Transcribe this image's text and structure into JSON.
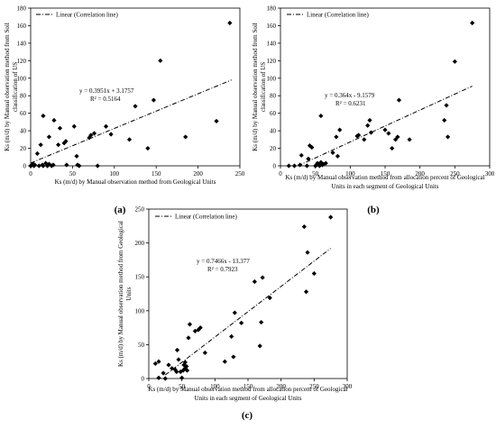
{
  "chart_data": [
    {
      "id": "a",
      "type": "scatter",
      "panel_label": "(a)",
      "xlabel": "Ks (m/d) by Manual observation method from Geological Units",
      "ylabel": [
        "Ks (m/d) by Manual observation method from Soil",
        "classification of US"
      ],
      "legend": "Linear (Correlation line)",
      "legend_position": "top-left",
      "equation": "y = 0.3951x + 3.1757",
      "r2": "R² = 0.5164",
      "xlim": [
        0,
        250
      ],
      "ylim": [
        0,
        180
      ],
      "xticks": [
        0,
        50,
        100,
        150,
        200,
        250
      ],
      "yticks": [
        0,
        20,
        40,
        60,
        80,
        100,
        120,
        140,
        160,
        180
      ],
      "trendline": {
        "slope": 0.3951,
        "intercept": 3.1757,
        "x_range": [
          0,
          240
        ]
      },
      "grid": false,
      "points": [
        [
          0,
          0
        ],
        [
          2,
          1
        ],
        [
          3,
          2
        ],
        [
          4,
          0
        ],
        [
          5,
          1
        ],
        [
          8,
          14
        ],
        [
          10,
          0
        ],
        [
          12,
          24
        ],
        [
          14,
          1
        ],
        [
          15,
          0
        ],
        [
          15,
          57
        ],
        [
          18,
          3
        ],
        [
          20,
          0
        ],
        [
          22,
          2
        ],
        [
          22,
          33
        ],
        [
          25,
          0
        ],
        [
          27,
          1
        ],
        [
          28,
          52
        ],
        [
          33,
          24
        ],
        [
          35,
          43
        ],
        [
          40,
          26
        ],
        [
          42,
          28
        ],
        [
          43,
          1
        ],
        [
          52,
          45
        ],
        [
          55,
          11
        ],
        [
          56,
          1
        ],
        [
          58,
          0
        ],
        [
          70,
          32
        ],
        [
          72,
          35
        ],
        [
          76,
          37
        ],
        [
          80,
          0
        ],
        [
          90,
          45
        ],
        [
          96,
          36
        ],
        [
          118,
          30
        ],
        [
          125,
          68
        ],
        [
          140,
          20
        ],
        [
          147,
          75
        ],
        [
          155,
          120
        ],
        [
          185,
          33
        ],
        [
          222,
          51
        ],
        [
          238,
          163
        ]
      ]
    },
    {
      "id": "b",
      "type": "scatter",
      "panel_label": "(b)",
      "xlabel": [
        "Ks (m/d) by Manual observation method from allocation percent of Geological",
        "Units in each segment of Geological Units"
      ],
      "ylabel": [
        "Ks (m/d) by Manual observation method from Soil",
        "classification of US"
      ],
      "legend": "Linear (Correlation line)",
      "legend_position": "top-left",
      "equation": "y = 0.364x - 9.1579",
      "r2": "R² = 0.6231",
      "xlim": [
        0,
        300
      ],
      "ylim": [
        0,
        180
      ],
      "xticks": [
        0,
        50,
        100,
        150,
        200,
        250,
        300
      ],
      "yticks": [
        0,
        20,
        40,
        60,
        80,
        100,
        120,
        140,
        160,
        180
      ],
      "trendline": {
        "slope": 0.364,
        "intercept": -9.1579,
        "x_range": [
          25,
          275
        ]
      },
      "grid": false,
      "points": [
        [
          12,
          0
        ],
        [
          20,
          0
        ],
        [
          28,
          1
        ],
        [
          30,
          12
        ],
        [
          38,
          0
        ],
        [
          40,
          8
        ],
        [
          42,
          23
        ],
        [
          45,
          21
        ],
        [
          50,
          0
        ],
        [
          52,
          1
        ],
        [
          53,
          3
        ],
        [
          55,
          2
        ],
        [
          56,
          0
        ],
        [
          57,
          1
        ],
        [
          58,
          4
        ],
        [
          58,
          57
        ],
        [
          60,
          1
        ],
        [
          62,
          2
        ],
        [
          65,
          3
        ],
        [
          75,
          15
        ],
        [
          80,
          33
        ],
        [
          82,
          11
        ],
        [
          85,
          41
        ],
        [
          110,
          34
        ],
        [
          112,
          35
        ],
        [
          120,
          30
        ],
        [
          125,
          46
        ],
        [
          128,
          52
        ],
        [
          130,
          38
        ],
        [
          150,
          41
        ],
        [
          155,
          37
        ],
        [
          160,
          20
        ],
        [
          165,
          30
        ],
        [
          168,
          33
        ],
        [
          170,
          75
        ],
        [
          185,
          30
        ],
        [
          235,
          52
        ],
        [
          238,
          69
        ],
        [
          240,
          33
        ],
        [
          250,
          119
        ],
        [
          275,
          163
        ]
      ]
    },
    {
      "id": "c",
      "type": "scatter",
      "panel_label": "(c)",
      "xlabel": [
        "Ks (m/d) by Manual observation method from allocation percent of Geological",
        "Units in each segment of Geological Units"
      ],
      "ylabel": [
        "Ks (m/d) by Manual observation method from Geological",
        "Units"
      ],
      "legend": "Linear (Correlation line)",
      "legend_position": "top-left",
      "equation": "y = 0.7466x - 13.377",
      "r2": "R² = 0.7923",
      "xlim": [
        0,
        300
      ],
      "ylim": [
        0,
        250
      ],
      "xticks": [
        0,
        50,
        100,
        150,
        200,
        250,
        300
      ],
      "yticks": [
        0,
        50,
        100,
        150,
        200,
        250
      ],
      "trendline": {
        "slope": 0.7466,
        "intercept": -13.377,
        "x_range": [
          25,
          275
        ]
      },
      "grid": false,
      "points": [
        [
          10,
          22
        ],
        [
          15,
          25
        ],
        [
          15,
          1
        ],
        [
          22,
          8
        ],
        [
          25,
          0
        ],
        [
          30,
          20
        ],
        [
          35,
          15
        ],
        [
          40,
          13
        ],
        [
          42,
          10
        ],
        [
          43,
          42
        ],
        [
          45,
          28
        ],
        [
          48,
          10
        ],
        [
          50,
          1
        ],
        [
          52,
          12
        ],
        [
          53,
          20
        ],
        [
          55,
          15
        ],
        [
          55,
          24
        ],
        [
          57,
          18
        ],
        [
          58,
          12
        ],
        [
          60,
          60
        ],
        [
          62,
          80
        ],
        [
          70,
          70
        ],
        [
          75,
          72
        ],
        [
          78,
          75
        ],
        [
          85,
          38
        ],
        [
          115,
          25
        ],
        [
          125,
          62
        ],
        [
          128,
          32
        ],
        [
          130,
          97
        ],
        [
          140,
          82
        ],
        [
          160,
          143
        ],
        [
          168,
          48
        ],
        [
          170,
          83
        ],
        [
          172,
          149
        ],
        [
          183,
          119
        ],
        [
          235,
          224
        ],
        [
          238,
          128
        ],
        [
          240,
          186
        ],
        [
          250,
          155
        ],
        [
          275,
          238
        ]
      ]
    }
  ]
}
